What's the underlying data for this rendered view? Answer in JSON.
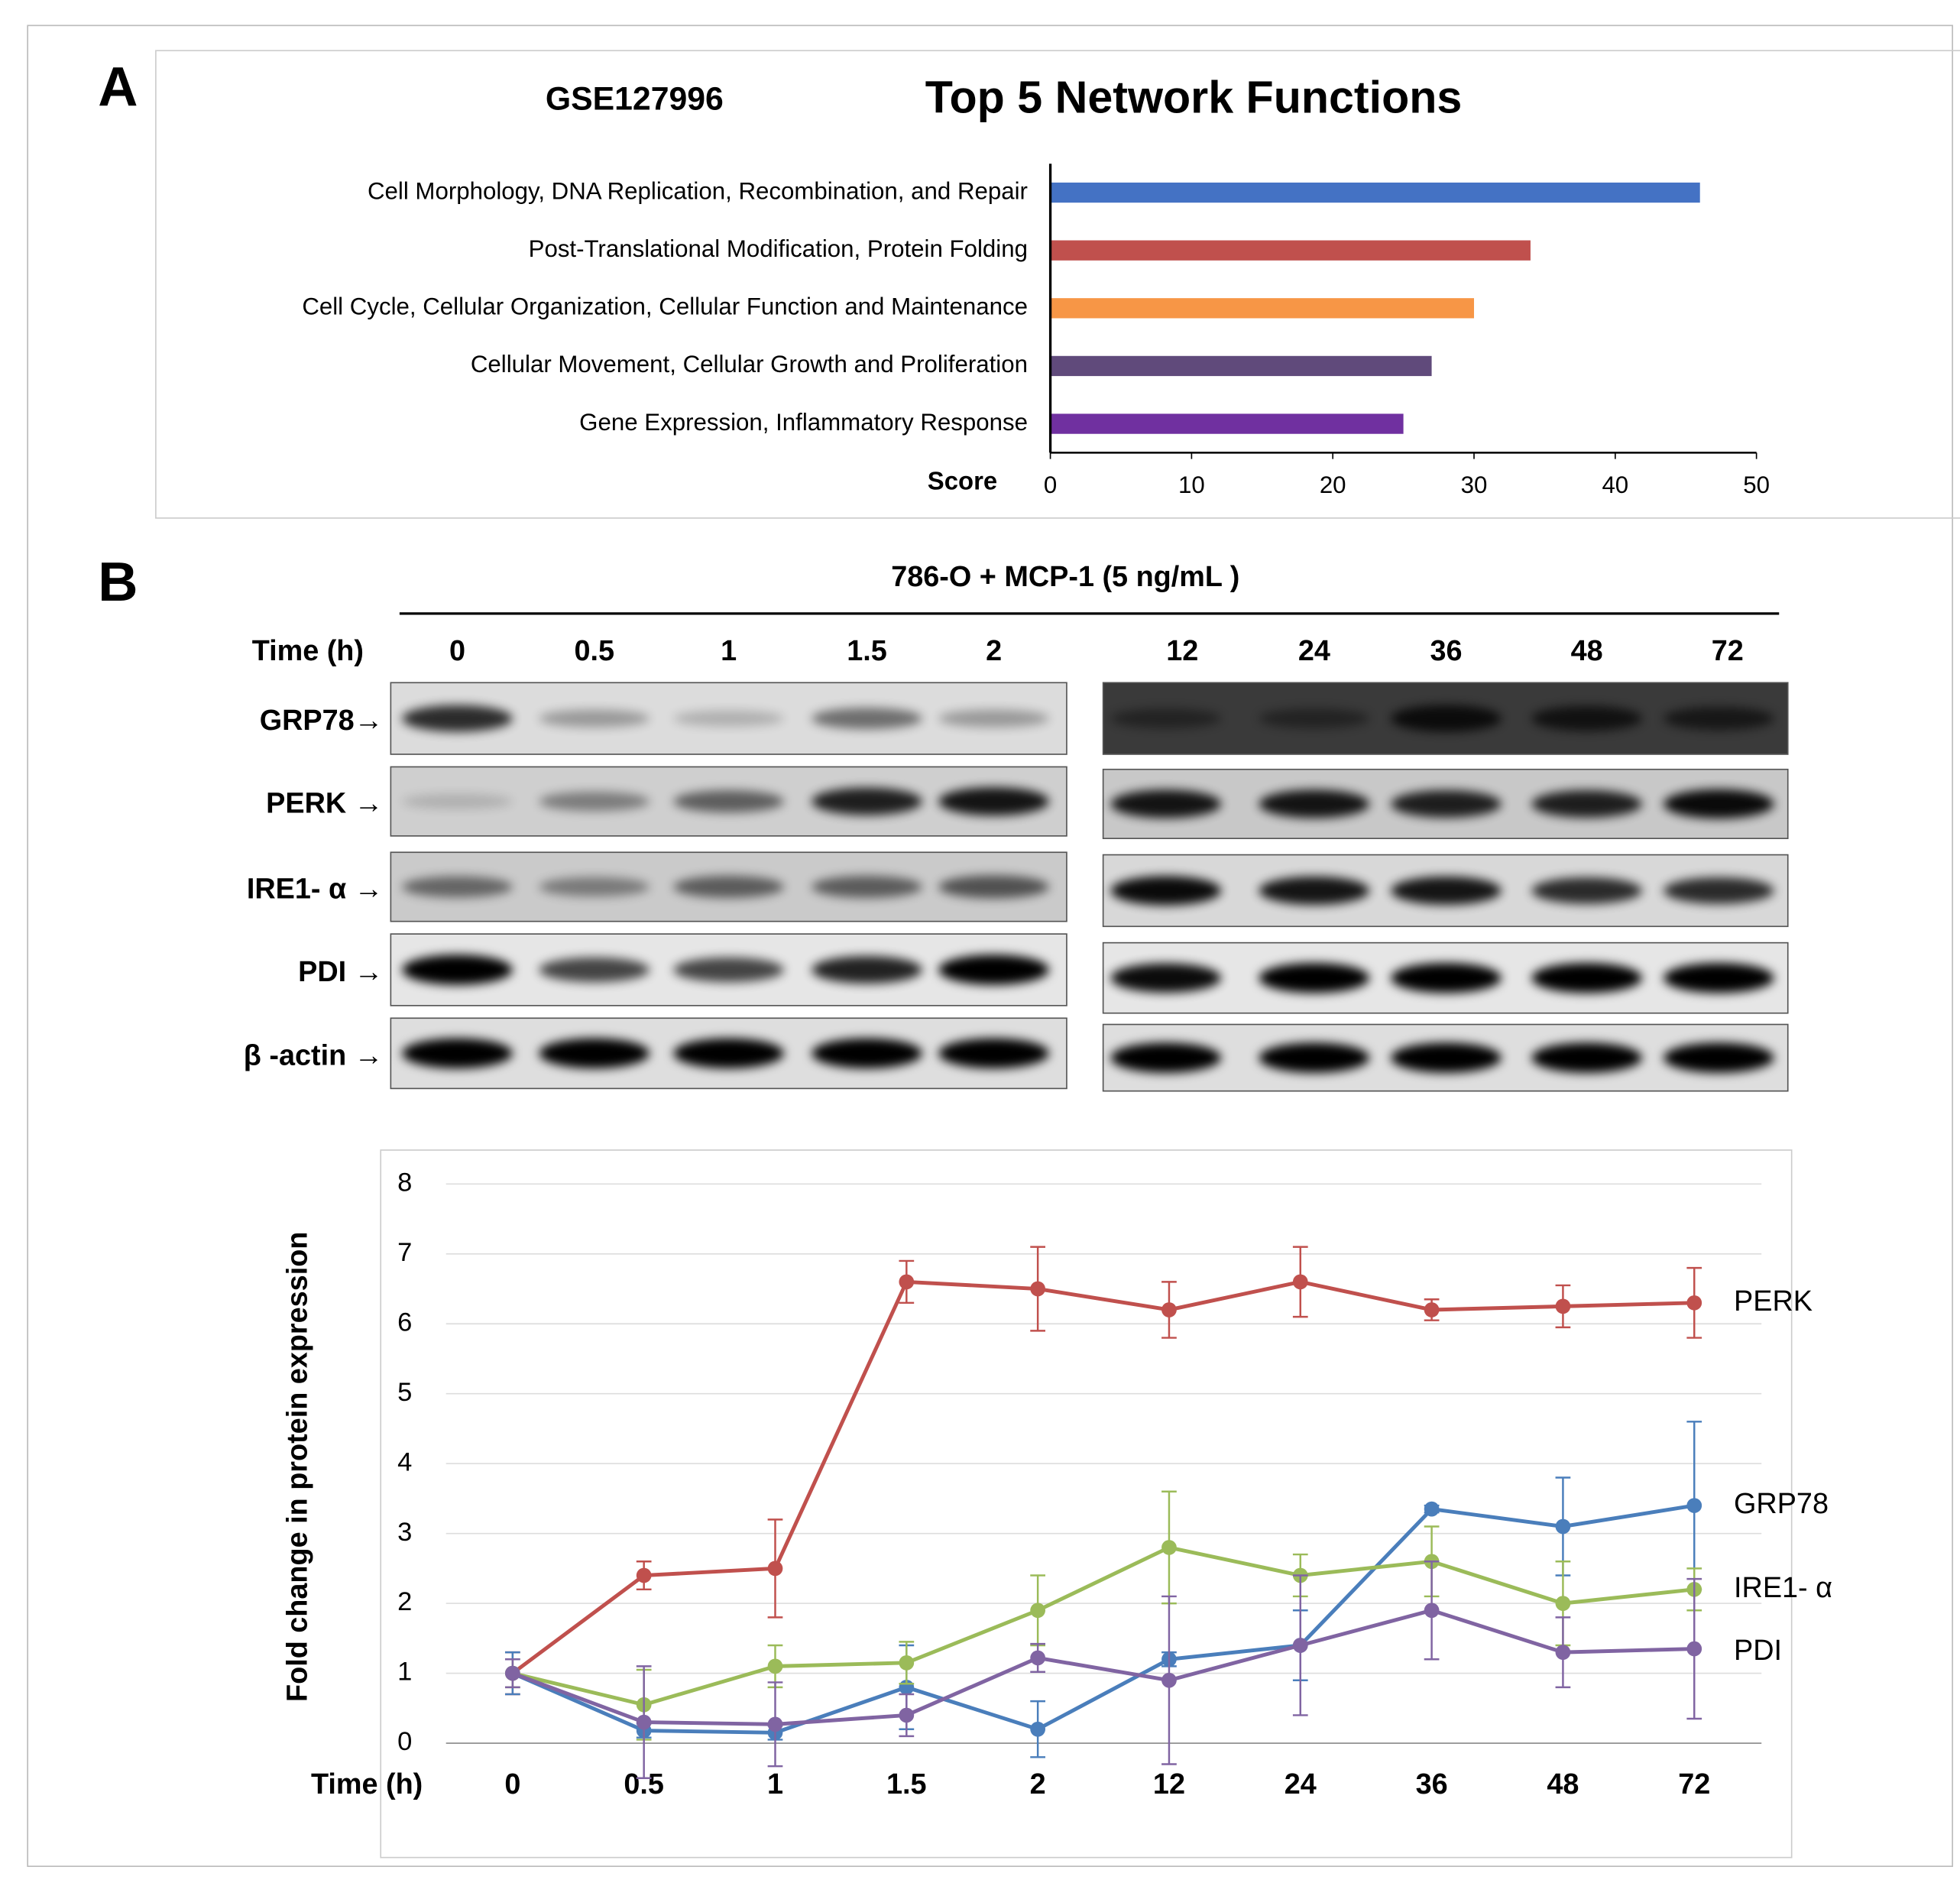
{
  "panels": [
    "A",
    "B"
  ],
  "chart_data": [
    {
      "type": "barh",
      "subtitle": "GSE127996",
      "title": "Top 5 Network Functions",
      "categories": [
        "Cell Morphology, DNA Replication, Recombination, and Repair",
        "Post-Translational Modification, Protein Folding",
        "Cell Cycle, Cellular Organization, Cellular Function and Maintenance",
        "Cellular Movement, Cellular Growth and Proliferation",
        "Gene Expression, Inflammatory Response"
      ],
      "values": [
        46,
        34,
        30,
        27,
        25
      ],
      "colors": [
        "#4472c4",
        "#c0504d",
        "#f79646",
        "#604a7b",
        "#7030a0"
      ],
      "xlabel": "Score",
      "xlim": [
        0,
        50
      ],
      "xticks": [
        0,
        10,
        20,
        30,
        40,
        50
      ],
      "grid": false
    },
    {
      "type": "line",
      "ylabel": "Fold change in protein expression",
      "xlabel": "Time (h)",
      "categories": [
        "0",
        "0.5",
        "1",
        "1.5",
        "2",
        "12",
        "24",
        "36",
        "48",
        "72"
      ],
      "ylim": [
        0,
        8
      ],
      "yticks": [
        0,
        1,
        2,
        3,
        4,
        5,
        6,
        7,
        8
      ],
      "grid": true,
      "series": [
        {
          "name": "PERK",
          "color": "#c0504d",
          "values": [
            1,
            2.4,
            2.5,
            6.6,
            6.5,
            6.2,
            6.6,
            6.2,
            6.25,
            6.3
          ],
          "errors": [
            0.3,
            0.2,
            0.7,
            0.3,
            0.6,
            0.4,
            0.5,
            0.15,
            0.3,
            0.5
          ]
        },
        {
          "name": "GRP78",
          "color": "#4a7ebb",
          "values": [
            1,
            0.18,
            0.15,
            0.8,
            0.2,
            1.2,
            1.4,
            3.35,
            3.1,
            3.4
          ],
          "errors": [
            0.3,
            0.1,
            0.1,
            0.6,
            0.4,
            0.1,
            0.5,
            0.05,
            0.7,
            1.2
          ]
        },
        {
          "name": "IRE1- α",
          "color": "#9bbb59",
          "values": [
            1,
            0.55,
            1.1,
            1.15,
            1.9,
            2.8,
            2.4,
            2.6,
            2.0,
            2.2
          ],
          "errors": [
            0.2,
            0.5,
            0.3,
            0.3,
            0.5,
            0.8,
            0.3,
            0.5,
            0.6,
            0.3
          ]
        },
        {
          "name": "PDI",
          "color": "#8064a2",
          "values": [
            1,
            0.3,
            0.27,
            0.4,
            1.22,
            0.9,
            1.4,
            1.9,
            1.3,
            1.35
          ],
          "errors": [
            0.2,
            0.8,
            0.6,
            0.3,
            0.2,
            1.2,
            1.0,
            0.7,
            0.5,
            1.0
          ]
        }
      ]
    }
  ],
  "blot": {
    "title": "786-O + MCP-1 (5 ng/mL )",
    "time_label": "Time (h)",
    "times": [
      "0",
      "0.5",
      "1",
      "1.5",
      "2",
      "12",
      "24",
      "36",
      "48",
      "72"
    ],
    "rows": [
      "GRP78→",
      "PERK →",
      "IRE1- α →",
      "PDI →",
      "β -actin →"
    ]
  }
}
